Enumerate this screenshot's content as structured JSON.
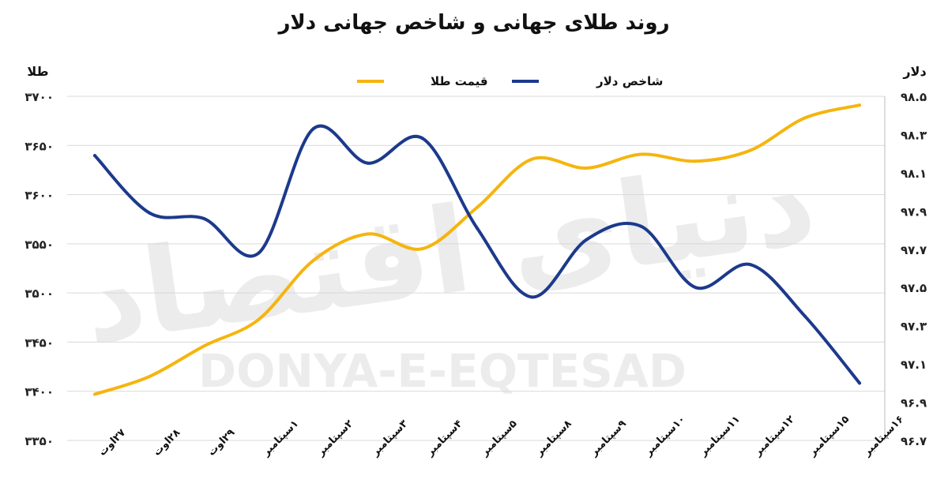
{
  "chart_data": {
    "type": "line",
    "title": "روند طلای جهانی و شاخص جهانی دلار",
    "categories": [
      "۲۷اوت",
      "۲۸اوت",
      "۲۹اوت",
      "۱سپتامبر",
      "۲سپتامبر",
      "۳سپتامبر",
      "۴سپتامبر",
      "۵سپتامبر",
      "۸سپتامبر",
      "۹سپتامبر",
      "۱۰سپتامبر",
      "۱۱سپتامبر",
      "۱۲سپتامبر",
      "۱۵سپتامبر",
      "۱۶سپتامبر"
    ],
    "y_left": {
      "label": "طلا",
      "range": [
        3350,
        3700
      ],
      "ticks": [
        3350,
        3400,
        3450,
        3500,
        3550,
        3600,
        3650,
        3700
      ],
      "tick_labels": [
        "۳۳۵۰",
        "۳۴۰۰",
        "۳۴۵۰",
        "۳۵۰۰",
        "۳۵۵۰",
        "۳۶۰۰",
        "۳۶۵۰",
        "۳۷۰۰"
      ]
    },
    "y_right": {
      "label": "دلار",
      "range": [
        96.7,
        98.5
      ],
      "ticks": [
        96.7,
        96.9,
        97.1,
        97.3,
        97.5,
        97.7,
        97.9,
        98.1,
        98.3,
        98.5
      ],
      "tick_labels": [
        "۹۶.۷",
        "۹۶.۹",
        "۹۷.۱",
        "۹۷.۳",
        "۹۷.۵",
        "۹۷.۷",
        "۹۷.۹",
        "۹۸.۱",
        "۹۸.۳",
        "۹۸.۵"
      ]
    },
    "grid": true,
    "legend_position": "top-center",
    "series": [
      {
        "name": "قیمت طلا",
        "axis": "left",
        "color": "#F5B50F",
        "values": [
          3397,
          3415,
          3446,
          3473,
          3533,
          3560,
          3545,
          3587,
          3636,
          3627,
          3641,
          3634,
          3645,
          3678,
          3691
        ]
      },
      {
        "name": "شاخص دلار",
        "axis": "right",
        "color": "#1C3A8C",
        "values": [
          98.19,
          97.89,
          97.86,
          97.68,
          98.33,
          98.15,
          98.28,
          97.81,
          97.45,
          97.75,
          97.82,
          97.5,
          97.62,
          97.35,
          97.0
        ]
      }
    ]
  },
  "watermark": {
    "latin": "DONYA-E-EQTESAD",
    "persian": "دنیای اقتصاد"
  }
}
